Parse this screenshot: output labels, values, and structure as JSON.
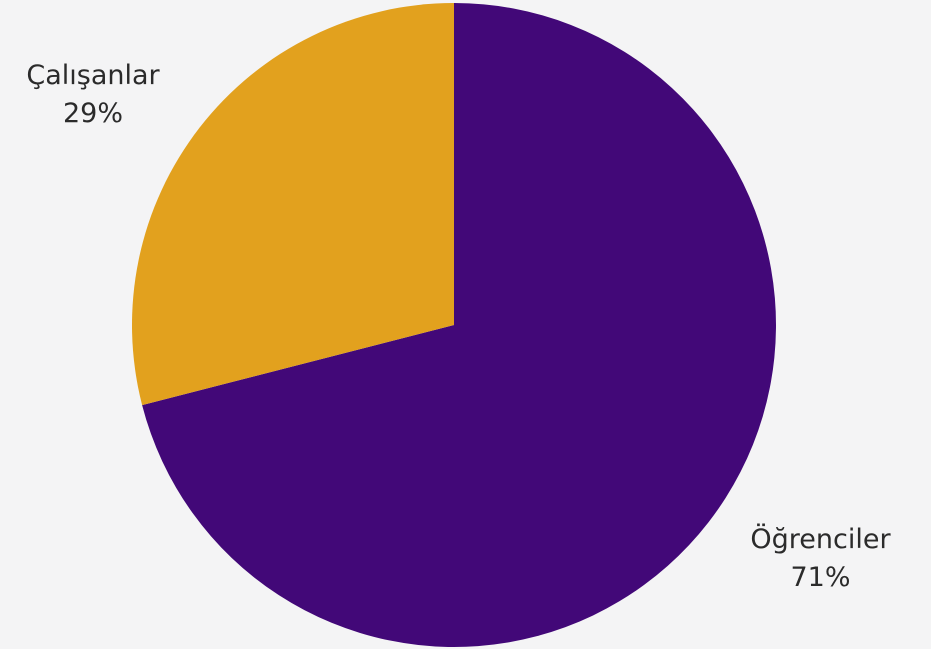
{
  "chart_data": {
    "type": "pie",
    "title": "",
    "categories": [
      "Öğrenciler",
      "Çalışanlar"
    ],
    "values": [
      71,
      29
    ],
    "labels": [
      "71%",
      "29%"
    ],
    "colors": [
      "#420878",
      "#e2a11e"
    ],
    "legend": "none"
  }
}
